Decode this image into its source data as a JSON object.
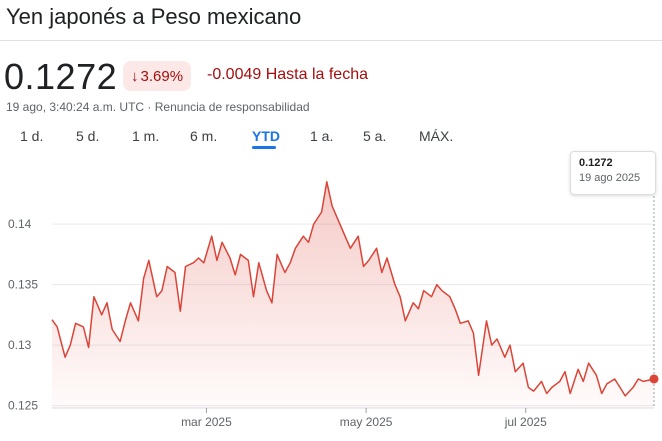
{
  "header": {
    "title": "Yen japonés a Peso mexicano"
  },
  "quote": {
    "price": "0.1272",
    "change_percent": "3.69%",
    "change_direction": "down",
    "change_absolute": "-0.0049 Hasta la fecha",
    "timestamp": "19 ago, 3:40:24 a.m. UTC",
    "separator": "·",
    "disclaimer": "Renuncia de responsabilidad"
  },
  "ranges": [
    {
      "label": "1 d.",
      "active": false
    },
    {
      "label": "5 d.",
      "active": false
    },
    {
      "label": "1 m.",
      "active": false
    },
    {
      "label": "6 m.",
      "active": false
    },
    {
      "label": "YTD",
      "active": true
    },
    {
      "label": "1 a.",
      "active": false
    },
    {
      "label": "5 a.",
      "active": false
    },
    {
      "label": "MÁX.",
      "active": false
    }
  ],
  "tooltip": {
    "value": "0.1272",
    "date": "19 ago 2025"
  },
  "colors": {
    "line": "#db4437",
    "negative": "#a50e0e",
    "badge_bg": "#fce8e6",
    "accent": "#1a73e8"
  },
  "chart_data": {
    "type": "area",
    "title": "",
    "xlabel": "",
    "ylabel": "",
    "ylim": [
      0.1248,
      0.1453
    ],
    "y_ticks": [
      0.125,
      0.13,
      0.135,
      0.14
    ],
    "y_tick_labels": [
      "0.125",
      "0.13",
      "0.135",
      "0.14"
    ],
    "x_ticks": [
      "mar 2025",
      "may 2025",
      "jul 2025"
    ],
    "grid": true,
    "series": [
      {
        "x": [
          "2025-01-01",
          "2025-01-03",
          "2025-01-06",
          "2025-01-08",
          "2025-01-10",
          "2025-01-13",
          "2025-01-15",
          "2025-01-17",
          "2025-01-20",
          "2025-01-22",
          "2025-01-24",
          "2025-01-27",
          "2025-01-29",
          "2025-01-31",
          "2025-02-03",
          "2025-02-05",
          "2025-02-07",
          "2025-02-10",
          "2025-02-12",
          "2025-02-14",
          "2025-02-17",
          "2025-02-19",
          "2025-02-21",
          "2025-02-24",
          "2025-02-26",
          "2025-02-28",
          "2025-03-03",
          "2025-03-05",
          "2025-03-07",
          "2025-03-10",
          "2025-03-12",
          "2025-03-14",
          "2025-03-17",
          "2025-03-19",
          "2025-03-21",
          "2025-03-24",
          "2025-03-26",
          "2025-03-28",
          "2025-03-31",
          "2025-04-02",
          "2025-04-04",
          "2025-04-07",
          "2025-04-09",
          "2025-04-11",
          "2025-04-14",
          "2025-04-16",
          "2025-04-18",
          "2025-04-21",
          "2025-04-23",
          "2025-04-25",
          "2025-04-28",
          "2025-04-30",
          "2025-05-02",
          "2025-05-05",
          "2025-05-07",
          "2025-05-09",
          "2025-05-12",
          "2025-05-14",
          "2025-05-16",
          "2025-05-19",
          "2025-05-21",
          "2025-05-23",
          "2025-05-26",
          "2025-05-28",
          "2025-05-30",
          "2025-06-02",
          "2025-06-04",
          "2025-06-06",
          "2025-06-09",
          "2025-06-11",
          "2025-06-13",
          "2025-06-16",
          "2025-06-18",
          "2025-06-20",
          "2025-06-23",
          "2025-06-25",
          "2025-06-27",
          "2025-06-30",
          "2025-07-02",
          "2025-07-04",
          "2025-07-07",
          "2025-07-09",
          "2025-07-11",
          "2025-07-14",
          "2025-07-16",
          "2025-07-18",
          "2025-07-21",
          "2025-07-23",
          "2025-07-25",
          "2025-07-28",
          "2025-07-30",
          "2025-08-01",
          "2025-08-04",
          "2025-08-06",
          "2025-08-08",
          "2025-08-11",
          "2025-08-13",
          "2025-08-15",
          "2025-08-19"
        ],
        "values": [
          0.1321,
          0.1315,
          0.129,
          0.13,
          0.1318,
          0.1315,
          0.1298,
          0.134,
          0.1325,
          0.1335,
          0.1313,
          0.1303,
          0.132,
          0.1335,
          0.132,
          0.1355,
          0.137,
          0.134,
          0.1345,
          0.1365,
          0.136,
          0.1328,
          0.1365,
          0.1368,
          0.1372,
          0.1368,
          0.139,
          0.137,
          0.1385,
          0.1372,
          0.1358,
          0.1375,
          0.137,
          0.134,
          0.1368,
          0.1345,
          0.1335,
          0.1375,
          0.136,
          0.1368,
          0.138,
          0.139,
          0.1385,
          0.14,
          0.141,
          0.1435,
          0.1415,
          0.14,
          0.139,
          0.138,
          0.139,
          0.1365,
          0.137,
          0.138,
          0.136,
          0.1372,
          0.135,
          0.134,
          0.132,
          0.1335,
          0.133,
          0.1345,
          0.134,
          0.135,
          0.1345,
          0.134,
          0.133,
          0.1318,
          0.132,
          0.131,
          0.1275,
          0.132,
          0.13,
          0.1305,
          0.129,
          0.13,
          0.1278,
          0.1285,
          0.1265,
          0.1262,
          0.127,
          0.126,
          0.1265,
          0.127,
          0.1278,
          0.126,
          0.128,
          0.127,
          0.1285,
          0.1275,
          0.126,
          0.1268,
          0.1272,
          0.1265,
          0.1258,
          0.1265,
          0.1272,
          0.127,
          0.1272
        ]
      }
    ]
  }
}
